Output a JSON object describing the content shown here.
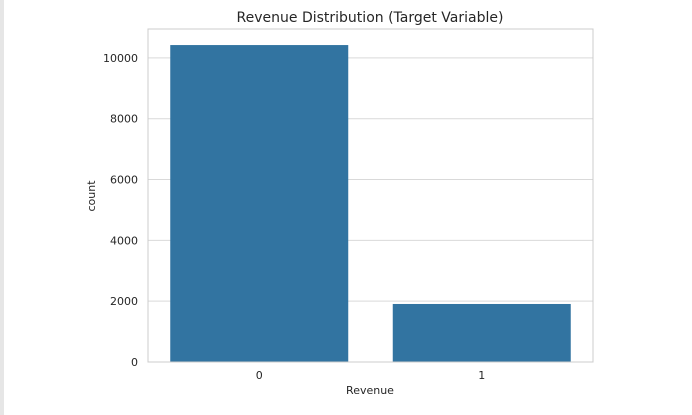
{
  "chart_data": {
    "type": "bar",
    "title": "Revenue Distribution (Target Variable)",
    "xlabel": "Revenue",
    "ylabel": "count",
    "categories": [
      "0",
      "1"
    ],
    "values": [
      10422,
      1908
    ],
    "ylim": [
      0,
      10950
    ],
    "yticks": [
      0,
      2000,
      4000,
      6000,
      8000,
      10000
    ],
    "grid": true,
    "legend": "none",
    "bar_color": "#3274a1",
    "grid_color": "#d9d9d9",
    "axes_edge_color": "#cccccc"
  }
}
